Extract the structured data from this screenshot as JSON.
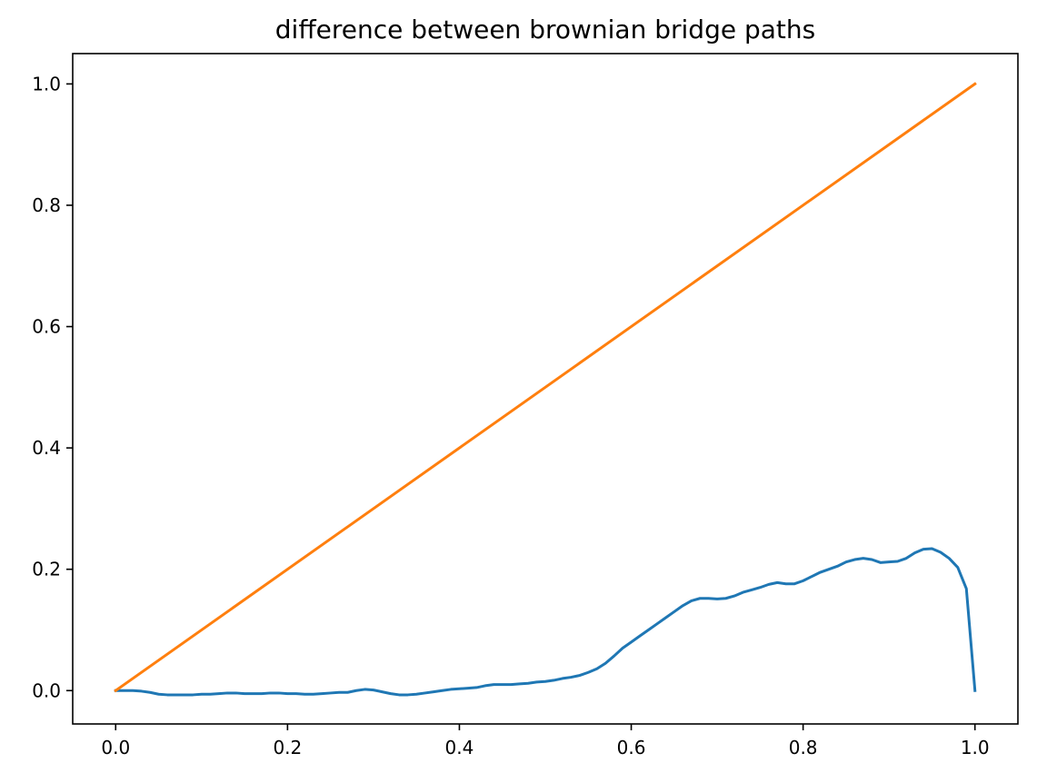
{
  "chart_data": {
    "type": "line",
    "title": "difference between brownian bridge paths",
    "xlabel": "",
    "ylabel": "",
    "xlim": [
      -0.05,
      1.05
    ],
    "ylim": [
      -0.055,
      1.05
    ],
    "xticks": [
      0.0,
      0.2,
      0.4,
      0.6,
      0.8,
      1.0
    ],
    "xtick_labels": [
      "0.0",
      "0.2",
      "0.4",
      "0.6",
      "0.8",
      "1.0"
    ],
    "yticks": [
      0.0,
      0.2,
      0.4,
      0.6,
      0.8,
      1.0
    ],
    "ytick_labels": [
      "0.0",
      "0.2",
      "0.4",
      "0.6",
      "0.8",
      "1.0"
    ],
    "grid": false,
    "legend": "none",
    "series": [
      {
        "color": "#1f77b4",
        "x": [
          0.0,
          0.01,
          0.02,
          0.03,
          0.04,
          0.05,
          0.06,
          0.07,
          0.08,
          0.09,
          0.1,
          0.11,
          0.12,
          0.13,
          0.14,
          0.15,
          0.16,
          0.17,
          0.18,
          0.19,
          0.2,
          0.21,
          0.22,
          0.23,
          0.24,
          0.25,
          0.26,
          0.27,
          0.28,
          0.29,
          0.3,
          0.31,
          0.32,
          0.33,
          0.34,
          0.35,
          0.36,
          0.37,
          0.38,
          0.39,
          0.4,
          0.41,
          0.42,
          0.43,
          0.44,
          0.45,
          0.46,
          0.47,
          0.48,
          0.49,
          0.5,
          0.51,
          0.52,
          0.53,
          0.54,
          0.55,
          0.56,
          0.57,
          0.58,
          0.59,
          0.6,
          0.61,
          0.62,
          0.63,
          0.64,
          0.65,
          0.66,
          0.67,
          0.68,
          0.69,
          0.7,
          0.71,
          0.72,
          0.73,
          0.74,
          0.75,
          0.76,
          0.77,
          0.78,
          0.79,
          0.8,
          0.81,
          0.82,
          0.83,
          0.84,
          0.85,
          0.86,
          0.87,
          0.88,
          0.89,
          0.9,
          0.91,
          0.92,
          0.93,
          0.94,
          0.95,
          0.96,
          0.97,
          0.98,
          0.99,
          1.0
        ],
        "y": [
          0.0,
          0.0,
          0.0,
          -0.001,
          -0.003,
          -0.006,
          -0.007,
          -0.007,
          -0.007,
          -0.007,
          -0.006,
          -0.006,
          -0.005,
          -0.004,
          -0.004,
          -0.005,
          -0.005,
          -0.005,
          -0.004,
          -0.004,
          -0.005,
          -0.005,
          -0.006,
          -0.006,
          -0.005,
          -0.004,
          -0.003,
          -0.003,
          0.0,
          0.002,
          0.001,
          -0.002,
          -0.005,
          -0.007,
          -0.007,
          -0.006,
          -0.004,
          -0.002,
          0.0,
          0.002,
          0.003,
          0.004,
          0.005,
          0.008,
          0.01,
          0.01,
          0.01,
          0.011,
          0.012,
          0.014,
          0.015,
          0.017,
          0.02,
          0.022,
          0.025,
          0.03,
          0.036,
          0.045,
          0.057,
          0.07,
          0.08,
          0.09,
          0.1,
          0.11,
          0.12,
          0.13,
          0.14,
          0.148,
          0.152,
          0.152,
          0.151,
          0.152,
          0.156,
          0.162,
          0.166,
          0.17,
          0.175,
          0.178,
          0.176,
          0.176,
          0.181,
          0.188,
          0.195,
          0.2,
          0.205,
          0.212,
          0.216,
          0.218,
          0.216,
          0.211,
          0.212,
          0.213,
          0.218,
          0.227,
          0.233,
          0.234,
          0.228,
          0.218,
          0.203,
          0.168,
          0.0
        ]
      },
      {
        "color": "#ff7f0e",
        "x": [
          0.0,
          1.0
        ],
        "y": [
          0.0,
          1.0
        ]
      }
    ]
  }
}
